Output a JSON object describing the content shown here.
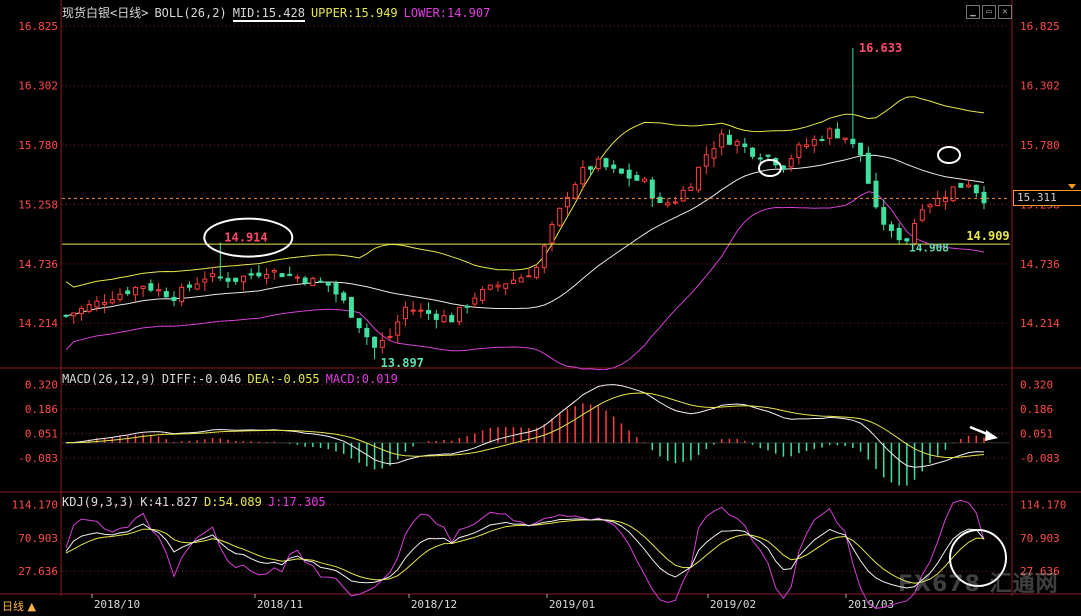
{
  "header": {
    "title": "现货白银<日线>",
    "indicator": "BOLL(26,2)",
    "mid": "MID:15.428",
    "upper": "UPPER:15.949",
    "lower": "LOWER:14.907"
  },
  "macd_header": {
    "name": "MACD(26,12,9)",
    "diff": "DIFF:-0.046",
    "dea": "DEA:-0.055",
    "macd": "MACD:0.019"
  },
  "kdj_header": {
    "name": "KDJ(9,3,3)",
    "k": "K:41.827",
    "d": "D:54.089",
    "j": "J:17.305"
  },
  "current_price": "15.311",
  "footer": {
    "tab": "日线",
    "watermark": "FX678 汇通网"
  },
  "colors": {
    "up": "#ff3d3d",
    "down": "#3fe0a0",
    "upper": "#e6e64a",
    "mid": "#e8e8e8",
    "lower": "#d53fd5",
    "grid": "#8a1e1e",
    "axis_text": "#ff4a4a",
    "price_line": "#ff8a2a",
    "support": "#e8e84a"
  },
  "chart_data": [
    {
      "type": "candlestick",
      "title": "现货白银<日线>",
      "y_ticks": [
        16.825,
        16.302,
        15.78,
        15.258,
        14.736,
        14.214
      ],
      "ylim": [
        13.82,
        16.95
      ],
      "x_ticks": [
        "2018/10",
        "2018/11",
        "2018/12",
        "2019/01",
        "2019/02",
        "2019/03"
      ],
      "annotations": [
        {
          "text": "16.633",
          "kind": "high"
        },
        {
          "text": "14.914",
          "kind": "level"
        },
        {
          "text": "13.897",
          "kind": "low"
        },
        {
          "text": "14.908",
          "kind": "low"
        },
        {
          "text": "14.909",
          "kind": "support"
        }
      ],
      "support_level": 14.909,
      "current_price": 15.311,
      "boll": {
        "upper": 15.949,
        "mid": 15.428,
        "lower": 14.907
      }
    },
    {
      "type": "bar",
      "title": "MACD(26,12,9)",
      "y_ticks": [
        0.32,
        0.186,
        0.051,
        -0.083
      ],
      "ylim": [
        -0.27,
        0.4
      ],
      "series": [
        {
          "name": "DIFF",
          "last": -0.046
        },
        {
          "name": "DEA",
          "last": -0.055
        },
        {
          "name": "MACD",
          "last": 0.019
        }
      ]
    },
    {
      "type": "line",
      "title": "KDJ(9,3,3)",
      "y_ticks": [
        114.17,
        70.903,
        27.636
      ],
      "ylim": [
        -2,
        128
      ],
      "series": [
        {
          "name": "K",
          "last": 41.827
        },
        {
          "name": "D",
          "last": 54.089
        },
        {
          "name": "J",
          "last": 17.305
        }
      ]
    }
  ]
}
